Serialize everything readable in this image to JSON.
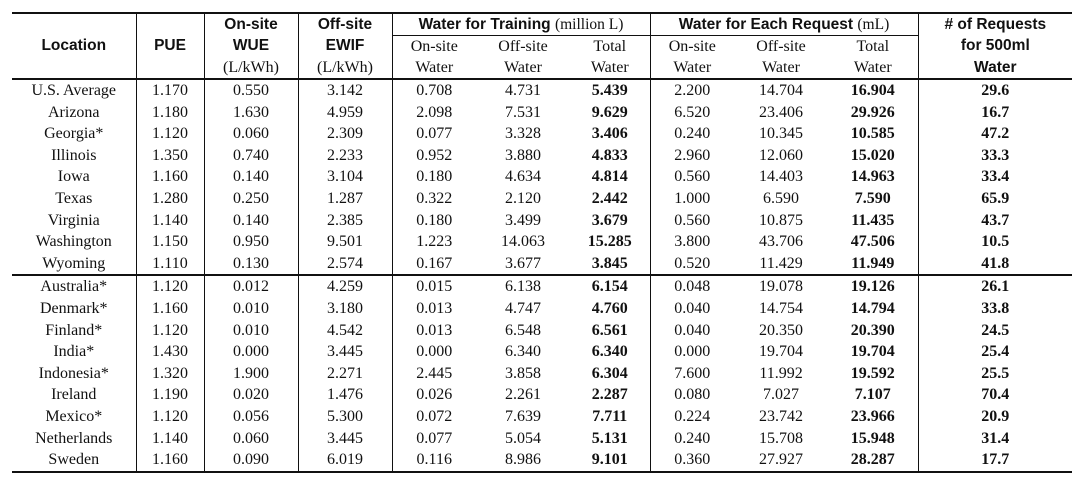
{
  "header": {
    "location": "Location",
    "pue": "PUE",
    "onsite_wue": [
      "On-site",
      "WUE",
      "(L/kWh)"
    ],
    "offsite_ewif": [
      "Off-site",
      "EWIF",
      "(L/kWh)"
    ],
    "training_group": [
      "Water for Training",
      "(million L)"
    ],
    "request_group": [
      "Water for Each Request",
      "(mL)"
    ],
    "sub_onsite": [
      "On-site",
      "Water"
    ],
    "sub_offsite": [
      "Off-site",
      "Water"
    ],
    "sub_total": [
      "Total",
      "Water"
    ],
    "requests": [
      "# of Requests",
      "for 500ml",
      "Water"
    ]
  },
  "group1": [
    [
      "U.S. Average",
      "1.170",
      "0.550",
      "3.142",
      "0.708",
      "4.731",
      "5.439",
      "2.200",
      "14.704",
      "16.904",
      "29.6"
    ],
    [
      "Arizona",
      "1.180",
      "1.630",
      "4.959",
      "2.098",
      "7.531",
      "9.629",
      "6.520",
      "23.406",
      "29.926",
      "16.7"
    ],
    [
      "Georgia*",
      "1.120",
      "0.060",
      "2.309",
      "0.077",
      "3.328",
      "3.406",
      "0.240",
      "10.345",
      "10.585",
      "47.2"
    ],
    [
      "Illinois",
      "1.350",
      "0.740",
      "2.233",
      "0.952",
      "3.880",
      "4.833",
      "2.960",
      "12.060",
      "15.020",
      "33.3"
    ],
    [
      "Iowa",
      "1.160",
      "0.140",
      "3.104",
      "0.180",
      "4.634",
      "4.814",
      "0.560",
      "14.403",
      "14.963",
      "33.4"
    ],
    [
      "Texas",
      "1.280",
      "0.250",
      "1.287",
      "0.322",
      "2.120",
      "2.442",
      "1.000",
      "6.590",
      "7.590",
      "65.9"
    ],
    [
      "Virginia",
      "1.140",
      "0.140",
      "2.385",
      "0.180",
      "3.499",
      "3.679",
      "0.560",
      "10.875",
      "11.435",
      "43.7"
    ],
    [
      "Washington",
      "1.150",
      "0.950",
      "9.501",
      "1.223",
      "14.063",
      "15.285",
      "3.800",
      "43.706",
      "47.506",
      "10.5"
    ],
    [
      "Wyoming",
      "1.110",
      "0.130",
      "2.574",
      "0.167",
      "3.677",
      "3.845",
      "0.520",
      "11.429",
      "11.949",
      "41.8"
    ]
  ],
  "group2": [
    [
      "Australia*",
      "1.120",
      "0.012",
      "4.259",
      "0.015",
      "6.138",
      "6.154",
      "0.048",
      "19.078",
      "19.126",
      "26.1"
    ],
    [
      "Denmark*",
      "1.160",
      "0.010",
      "3.180",
      "0.013",
      "4.747",
      "4.760",
      "0.040",
      "14.754",
      "14.794",
      "33.8"
    ],
    [
      "Finland*",
      "1.120",
      "0.010",
      "4.542",
      "0.013",
      "6.548",
      "6.561",
      "0.040",
      "20.350",
      "20.390",
      "24.5"
    ],
    [
      "India*",
      "1.430",
      "0.000",
      "3.445",
      "0.000",
      "6.340",
      "6.340",
      "0.000",
      "19.704",
      "19.704",
      "25.4"
    ],
    [
      "Indonesia*",
      "1.320",
      "1.900",
      "2.271",
      "2.445",
      "3.858",
      "6.304",
      "7.600",
      "11.992",
      "19.592",
      "25.5"
    ],
    [
      "Ireland",
      "1.190",
      "0.020",
      "1.476",
      "0.026",
      "2.261",
      "2.287",
      "0.080",
      "7.027",
      "7.107",
      "70.4"
    ],
    [
      "Mexico*",
      "1.120",
      "0.056",
      "5.300",
      "0.072",
      "7.639",
      "7.711",
      "0.224",
      "23.742",
      "23.966",
      "20.9"
    ],
    [
      "Netherlands",
      "1.140",
      "0.060",
      "3.445",
      "0.077",
      "5.054",
      "5.131",
      "0.240",
      "15.708",
      "15.948",
      "31.4"
    ],
    [
      "Sweden",
      "1.160",
      "0.090",
      "6.019",
      "0.116",
      "8.986",
      "9.101",
      "0.360",
      "27.927",
      "28.287",
      "17.7"
    ]
  ]
}
